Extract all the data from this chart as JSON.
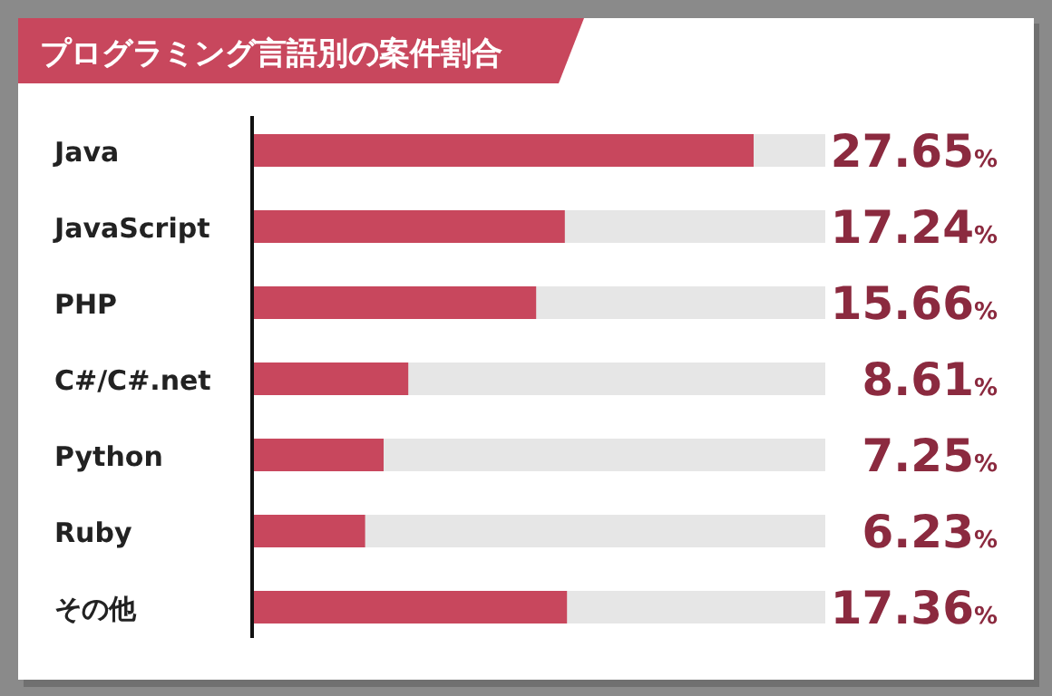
{
  "chart_data": {
    "type": "bar",
    "orientation": "horizontal",
    "title": "プログラミング言語別の案件割合",
    "categories": [
      "Java",
      "JavaScript",
      "PHP",
      "C#/C#.net",
      "Python",
      "Ruby",
      "その他"
    ],
    "values": [
      27.65,
      17.24,
      15.66,
      8.61,
      7.25,
      6.23,
      17.36
    ],
    "value_labels": [
      "27.65%",
      "17.24%",
      "15.66%",
      "8.61%",
      "7.25%",
      "6.23%",
      "17.36%"
    ],
    "color": "#c8475d",
    "xlim": [
      0,
      31.6
    ]
  }
}
